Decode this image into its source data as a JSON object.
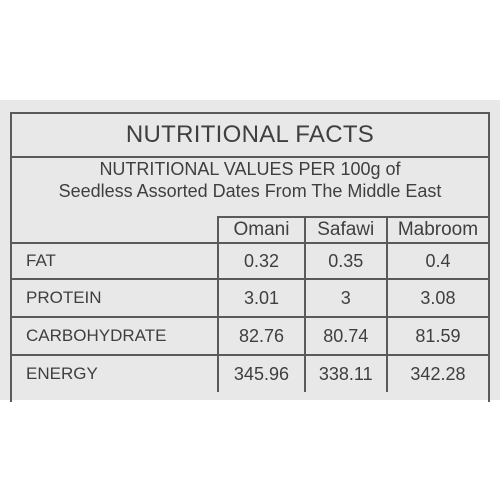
{
  "panel": {
    "title": "NUTRITIONAL FACTS",
    "subtitle_line1": "NUTRITIONAL VALUES PER 100g of",
    "subtitle_line2": "Seedless Assorted Dates From The Middle East"
  },
  "table": {
    "columns": [
      "Omani",
      "Safawi",
      "Mabroom"
    ],
    "rows": [
      {
        "name": "FAT",
        "values": [
          "0.32",
          "0.35",
          "0.4"
        ]
      },
      {
        "name": "PROTEIN",
        "values": [
          "3.01",
          "3",
          "3.08"
        ]
      },
      {
        "name": "CARBOHYDRATE",
        "values": [
          "82.76",
          "80.74",
          "81.59"
        ]
      },
      {
        "name": "ENERGY",
        "values": [
          "345.96",
          "338.11",
          "342.28"
        ]
      }
    ]
  }
}
